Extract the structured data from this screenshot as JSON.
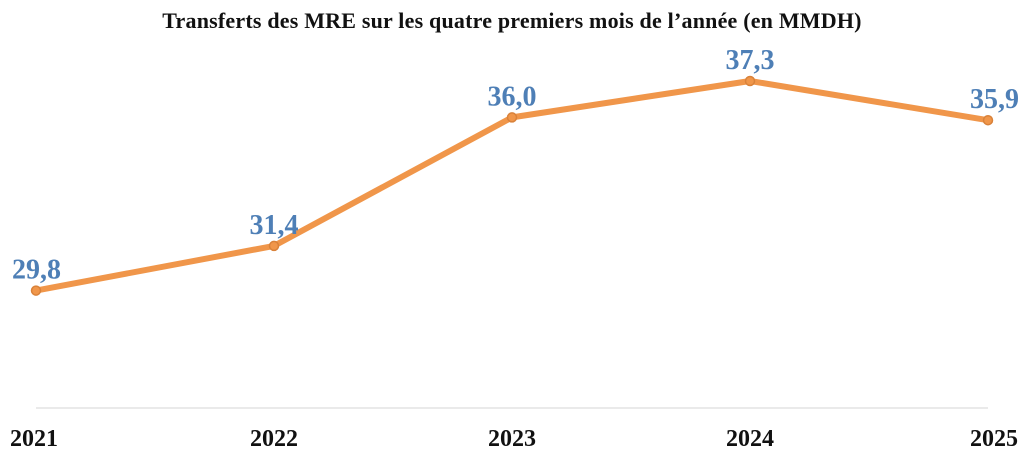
{
  "chart_data": {
    "type": "line",
    "title": "Transferts des MRE sur les quatre premiers mois de l’année (en MMDH)",
    "categories": [
      "2021",
      "2022",
      "2023",
      "2024",
      "2025"
    ],
    "series": [
      {
        "values": [
          29.8,
          31.4,
          36.0,
          37.3,
          35.9
        ],
        "labels": [
          "29,8",
          "31,4",
          "36,0",
          "37,3",
          "35,9"
        ],
        "color": "#F0964A"
      }
    ],
    "data_label_color": "#4E7FB6",
    "tick_label_color": "#111111",
    "axis_color": "#E4E4E4",
    "ylim": [
      25.6,
      40.2
    ],
    "grid": false,
    "legend": "none"
  }
}
